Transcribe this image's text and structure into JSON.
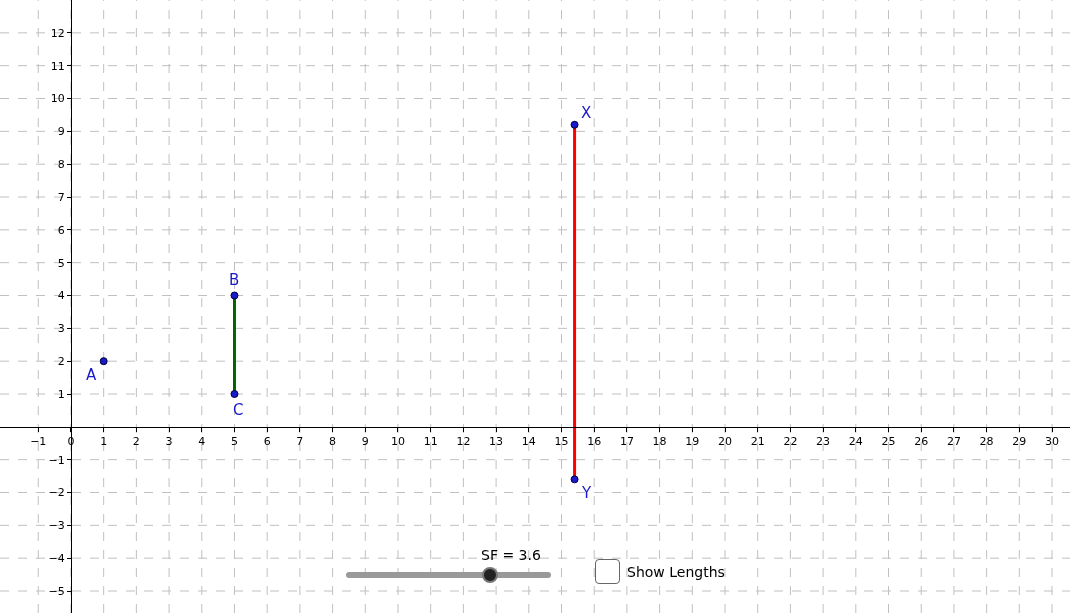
{
  "chart_data": {
    "type": "scatter",
    "xlim": [
      -2.17,
      30.55
    ],
    "ylim": [
      -5.67,
      13.0
    ],
    "xticks": [
      -1,
      0,
      1,
      2,
      3,
      4,
      5,
      6,
      7,
      8,
      9,
      10,
      11,
      12,
      13,
      14,
      15,
      16,
      17,
      18,
      19,
      20,
      21,
      22,
      23,
      24,
      25,
      26,
      27,
      28,
      29,
      30
    ],
    "yticks": [
      -5,
      -4,
      -3,
      -2,
      -1,
      1,
      2,
      3,
      4,
      5,
      6,
      7,
      8,
      9,
      10,
      11,
      12
    ],
    "grid": true,
    "marker": "circle",
    "series": [
      {
        "type": "line",
        "color": "#006400",
        "x": [
          5,
          5
        ],
        "values": [
          4,
          1
        ],
        "marker": "none"
      },
      {
        "type": "line",
        "color": "#ff0000",
        "x": [
          15.4,
          15.4
        ],
        "values": [
          9.2,
          -1.6
        ],
        "marker": "none"
      },
      {
        "color": "#1a1acc",
        "x": [
          1,
          5,
          5,
          15.4,
          15.4
        ],
        "values": [
          2,
          4,
          1,
          9.2,
          -1.6
        ]
      }
    ],
    "annotations": [
      {
        "text": "A",
        "x": 1,
        "y": 2
      },
      {
        "text": "B",
        "x": 5,
        "y": 4
      },
      {
        "text": "C",
        "x": 5,
        "y": 1
      },
      {
        "text": "X",
        "x": 15.4,
        "y": 9.2
      },
      {
        "text": "Y",
        "x": 15.4,
        "y": -1.6
      },
      "SF = 3.6",
      "Show Lengths"
    ]
  }
}
